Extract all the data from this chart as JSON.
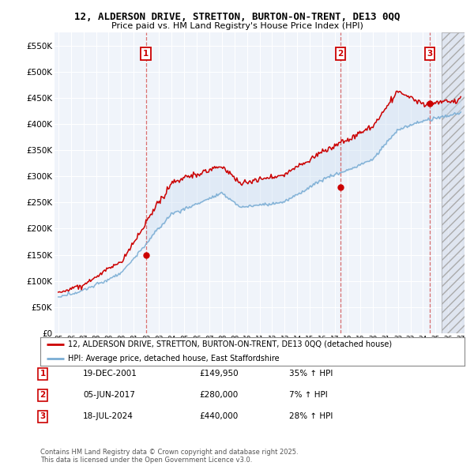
{
  "title1": "12, ALDERSON DRIVE, STRETTON, BURTON-ON-TRENT, DE13 0QQ",
  "title2": "Price paid vs. HM Land Registry's House Price Index (HPI)",
  "ylim": [
    0,
    575000
  ],
  "yticks": [
    0,
    50000,
    100000,
    150000,
    200000,
    250000,
    300000,
    350000,
    400000,
    450000,
    500000,
    550000
  ],
  "ytick_labels": [
    "£0",
    "£50K",
    "£100K",
    "£150K",
    "£200K",
    "£250K",
    "£300K",
    "£350K",
    "£400K",
    "£450K",
    "£500K",
    "£550K"
  ],
  "xlim_start": 1994.7,
  "xlim_end": 2027.3,
  "xticks": [
    1995,
    1996,
    1997,
    1998,
    1999,
    2000,
    2001,
    2002,
    2003,
    2004,
    2005,
    2006,
    2007,
    2008,
    2009,
    2010,
    2011,
    2012,
    2013,
    2014,
    2015,
    2016,
    2017,
    2018,
    2019,
    2020,
    2021,
    2022,
    2023,
    2024,
    2025,
    2026,
    2027
  ],
  "sale_color": "#cc0000",
  "hpi_color": "#7aadd4",
  "sale_label": "12, ALDERSON DRIVE, STRETTON, BURTON-ON-TRENT, DE13 0QQ (detached house)",
  "hpi_label": "HPI: Average price, detached house, East Staffordshire",
  "transactions": [
    {
      "num": 1,
      "date": "19-DEC-2001",
      "price": 149950,
      "pct": "35%",
      "dir": "↑",
      "year": 2001.96
    },
    {
      "num": 2,
      "date": "05-JUN-2017",
      "price": 280000,
      "pct": "7%",
      "dir": "↑",
      "year": 2017.43
    },
    {
      "num": 3,
      "date": "18-JUL-2024",
      "price": 440000,
      "pct": "28%",
      "dir": "↑",
      "year": 2024.54
    }
  ],
  "footnote": "Contains HM Land Registry data © Crown copyright and database right 2025.\nThis data is licensed under the Open Government Licence v3.0.",
  "background_color": "#ffffff",
  "plot_bg_color": "#f0f4fa",
  "grid_color": "#ffffff",
  "hatch_start": 2025.5
}
